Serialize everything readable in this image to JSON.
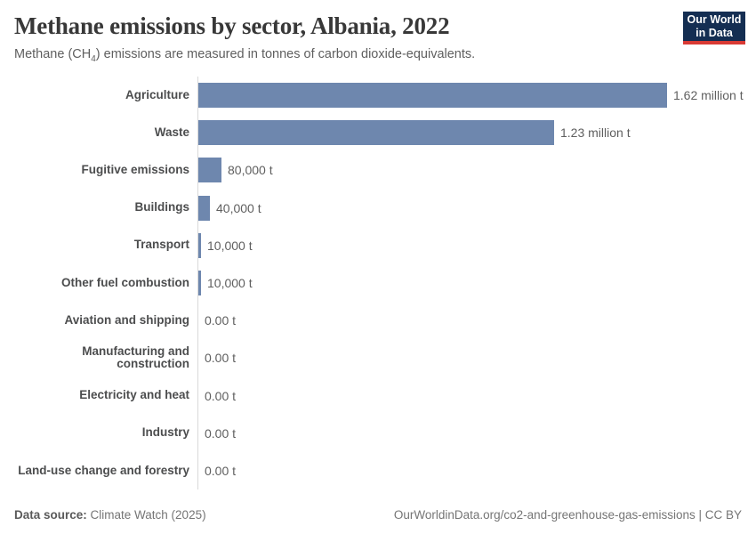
{
  "header": {
    "title": "Methane emissions by sector, Albania, 2022",
    "subtitle_prefix": "Methane (CH",
    "subtitle_sub": "4",
    "subtitle_suffix": ") emissions are measured in tonnes of carbon dioxide-equivalents."
  },
  "logo": {
    "line1": "Our World",
    "line2": "in Data",
    "bg_color": "#142e52",
    "accent_color": "#d93a34"
  },
  "chart_data": {
    "type": "bar",
    "orientation": "horizontal",
    "title": "Methane emissions by sector, Albania, 2022",
    "unit": "t",
    "xlim": [
      0,
      1620000
    ],
    "grid": false,
    "legend": false,
    "bar_color": "#6e87ae",
    "axis_color": "#d9d9d9",
    "categories": [
      "Agriculture",
      "Waste",
      "Fugitive emissions",
      "Buildings",
      "Transport",
      "Other fuel combustion",
      "Aviation and shipping",
      "Manufacturing and construction",
      "Electricity and heat",
      "Industry",
      "Land-use change and forestry"
    ],
    "values": [
      1620000,
      1230000,
      80000,
      40000,
      10000,
      10000,
      0,
      0,
      0,
      0,
      0
    ],
    "value_labels": [
      "1.62 million t",
      "1.23 million t",
      "80,000 t",
      "40,000 t",
      "10,000 t",
      "10,000 t",
      "0.00 t",
      "0.00 t",
      "0.00 t",
      "0.00 t",
      "0.00 t"
    ]
  },
  "footer": {
    "source_label": "Data source:",
    "source_value": " Climate Watch (2025)",
    "credit": "OurWorldinData.org/co2-and-greenhouse-gas-emissions | CC BY"
  }
}
